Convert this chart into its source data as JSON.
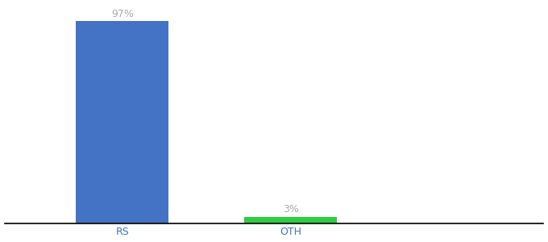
{
  "categories": [
    "RS",
    "OTH"
  ],
  "values": [
    97,
    3
  ],
  "bar_colors": [
    "#4472c4",
    "#2ecc40"
  ],
  "value_labels": [
    "97%",
    "3%"
  ],
  "ylim": [
    0,
    105
  ],
  "background_color": "#ffffff",
  "label_color": "#aaaaaa",
  "label_fontsize": 9,
  "tick_fontsize": 9,
  "tick_color": "#4472c4",
  "bar_width": 0.55,
  "x_positions": [
    1.0,
    2.0
  ],
  "xlim": [
    0.3,
    3.5
  ]
}
